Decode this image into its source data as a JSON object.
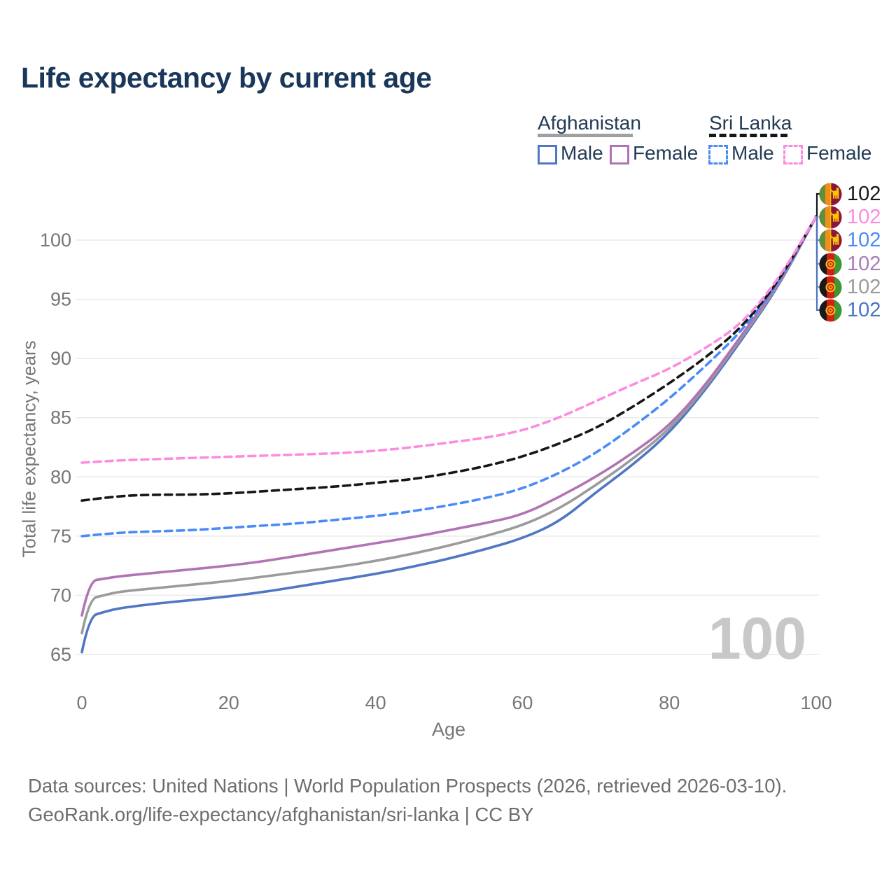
{
  "title": "Life expectancy by current age",
  "watermark": "100",
  "colors": {
    "title_text": "#19375a",
    "legend_text": "#243b55",
    "axis_text": "#767676",
    "gridline": "#eaeaea",
    "watermark": "#c8c8c8",
    "footer_text": "#6d6d6d",
    "afghanistan_male": "#4f77c3",
    "afghanistan_all": "#9b9b9b",
    "afghanistan_female": "#b273b5",
    "sri_lanka_male": "#4a8cf7",
    "sri_lanka_all": "#171717",
    "sri_lanka_female": "#fb8ce1"
  },
  "legend": {
    "groups": [
      {
        "name": "Afghanistan",
        "line_style": "solid",
        "items": [
          {
            "label": "Male",
            "color": "#4f77c3"
          },
          {
            "label": "Female",
            "color": "#b273b5"
          }
        ]
      },
      {
        "name": "Sri Lanka",
        "line_style": "dashed",
        "items": [
          {
            "label": "Male",
            "color": "#4a8cf7"
          },
          {
            "label": "Female",
            "color": "#fb8ce1"
          }
        ]
      }
    ]
  },
  "chart_data": {
    "type": "line",
    "xlabel": "Age",
    "ylabel": "Total life expectancy, years",
    "xlim": [
      0,
      100
    ],
    "ylim": [
      65,
      102.5
    ],
    "xticks": [
      0,
      20,
      40,
      60,
      80,
      100
    ],
    "yticks": [
      65,
      70,
      75,
      80,
      85,
      90,
      95,
      100
    ],
    "grid": "horizontal",
    "legend_position": "top-right",
    "series": [
      {
        "name": "Afghanistan Male",
        "country": "Afghanistan",
        "group": "Male",
        "color": "#4f77c3",
        "dash": false,
        "end_value": 102,
        "points": [
          [
            0,
            65.2
          ],
          [
            1,
            68.2
          ],
          [
            3,
            68.6
          ],
          [
            5,
            68.9
          ],
          [
            10,
            69.3
          ],
          [
            15,
            69.6
          ],
          [
            20,
            69.9
          ],
          [
            25,
            70.3
          ],
          [
            30,
            70.8
          ],
          [
            35,
            71.3
          ],
          [
            40,
            71.8
          ],
          [
            45,
            72.4
          ],
          [
            50,
            73.1
          ],
          [
            55,
            73.9
          ],
          [
            60,
            74.8
          ],
          [
            65,
            76.2
          ],
          [
            70,
            78.7
          ],
          [
            75,
            81.0
          ],
          [
            80,
            83.7
          ],
          [
            85,
            87.4
          ],
          [
            90,
            91.7
          ],
          [
            95,
            96.2
          ],
          [
            100,
            102
          ]
        ]
      },
      {
        "name": "Afghanistan All",
        "country": "Afghanistan",
        "group": "All",
        "color": "#9b9b9b",
        "dash": false,
        "end_value": 102,
        "points": [
          [
            0,
            66.8
          ],
          [
            1,
            69.7
          ],
          [
            3,
            70.0
          ],
          [
            5,
            70.3
          ],
          [
            10,
            70.6
          ],
          [
            15,
            70.9
          ],
          [
            20,
            71.2
          ],
          [
            25,
            71.6
          ],
          [
            30,
            72.0
          ],
          [
            35,
            72.4
          ],
          [
            40,
            72.9
          ],
          [
            45,
            73.5
          ],
          [
            50,
            74.2
          ],
          [
            55,
            75.0
          ],
          [
            60,
            75.9
          ],
          [
            65,
            77.3
          ],
          [
            70,
            79.3
          ],
          [
            75,
            81.5
          ],
          [
            80,
            84.0
          ],
          [
            85,
            87.6
          ],
          [
            90,
            91.9
          ],
          [
            95,
            96.3
          ],
          [
            100,
            102
          ]
        ]
      },
      {
        "name": "Afghanistan Female",
        "country": "Afghanistan",
        "group": "Female",
        "color": "#b273b5",
        "dash": false,
        "end_value": 102,
        "points": [
          [
            0,
            68.3
          ],
          [
            1,
            71.2
          ],
          [
            3,
            71.4
          ],
          [
            5,
            71.6
          ],
          [
            10,
            71.9
          ],
          [
            15,
            72.2
          ],
          [
            20,
            72.5
          ],
          [
            25,
            72.9
          ],
          [
            30,
            73.4
          ],
          [
            35,
            73.9
          ],
          [
            40,
            74.4
          ],
          [
            45,
            74.9
          ],
          [
            50,
            75.5
          ],
          [
            55,
            76.1
          ],
          [
            60,
            76.8
          ],
          [
            65,
            78.3
          ],
          [
            70,
            80.0
          ],
          [
            75,
            82.0
          ],
          [
            80,
            84.3
          ],
          [
            85,
            87.8
          ],
          [
            90,
            92.1
          ],
          [
            95,
            96.4
          ],
          [
            100,
            102
          ]
        ]
      },
      {
        "name": "Sri Lanka Male",
        "country": "Sri Lanka",
        "group": "Male",
        "color": "#4a8cf7",
        "dash": true,
        "end_value": 102,
        "points": [
          [
            0,
            75.0
          ],
          [
            5,
            75.3
          ],
          [
            10,
            75.4
          ],
          [
            15,
            75.5
          ],
          [
            20,
            75.7
          ],
          [
            25,
            75.9
          ],
          [
            30,
            76.1
          ],
          [
            35,
            76.4
          ],
          [
            40,
            76.7
          ],
          [
            45,
            77.1
          ],
          [
            50,
            77.6
          ],
          [
            55,
            78.2
          ],
          [
            60,
            79.0
          ],
          [
            65,
            80.3
          ],
          [
            70,
            82.0
          ],
          [
            75,
            84.2
          ],
          [
            80,
            86.6
          ],
          [
            85,
            89.4
          ],
          [
            90,
            92.4
          ],
          [
            95,
            96.5
          ],
          [
            100,
            102
          ]
        ]
      },
      {
        "name": "Sri Lanka All",
        "country": "Sri Lanka",
        "group": "All",
        "color": "#171717",
        "dash": true,
        "end_value": 102,
        "points": [
          [
            0,
            78.0
          ],
          [
            5,
            78.4
          ],
          [
            10,
            78.5
          ],
          [
            15,
            78.5
          ],
          [
            20,
            78.6
          ],
          [
            25,
            78.8
          ],
          [
            30,
            79.0
          ],
          [
            35,
            79.2
          ],
          [
            40,
            79.5
          ],
          [
            45,
            79.8
          ],
          [
            50,
            80.3
          ],
          [
            55,
            80.9
          ],
          [
            60,
            81.7
          ],
          [
            65,
            82.8
          ],
          [
            70,
            84.1
          ],
          [
            75,
            85.9
          ],
          [
            80,
            87.9
          ],
          [
            85,
            90.1
          ],
          [
            90,
            92.7
          ],
          [
            95,
            96.6
          ],
          [
            100,
            102
          ]
        ]
      },
      {
        "name": "Sri Lanka Female",
        "country": "Sri Lanka",
        "group": "Female",
        "color": "#fb8ce1",
        "dash": true,
        "end_value": 102,
        "points": [
          [
            0,
            81.2
          ],
          [
            5,
            81.4
          ],
          [
            10,
            81.5
          ],
          [
            15,
            81.6
          ],
          [
            20,
            81.7
          ],
          [
            25,
            81.8
          ],
          [
            30,
            81.9
          ],
          [
            35,
            82.0
          ],
          [
            40,
            82.2
          ],
          [
            45,
            82.5
          ],
          [
            50,
            82.9
          ],
          [
            55,
            83.3
          ],
          [
            60,
            83.9
          ],
          [
            65,
            85.0
          ],
          [
            70,
            86.4
          ],
          [
            75,
            87.8
          ],
          [
            80,
            89.1
          ],
          [
            85,
            90.9
          ],
          [
            90,
            93.0
          ],
          [
            95,
            96.8
          ],
          [
            100,
            102
          ]
        ]
      }
    ]
  },
  "end_labels": [
    {
      "flag": "sri-lanka",
      "value": "102",
      "color": "#171717"
    },
    {
      "flag": "sri-lanka",
      "value": "102",
      "color": "#fb8ce1"
    },
    {
      "flag": "sri-lanka",
      "value": "102",
      "color": "#4a8cf7"
    },
    {
      "flag": "afghanistan",
      "value": "102",
      "color": "#a97cb8"
    },
    {
      "flag": "afghanistan",
      "value": "102",
      "color": "#9b9b9b"
    },
    {
      "flag": "afghanistan",
      "value": "102",
      "color": "#4a74c4"
    }
  ],
  "footer": {
    "line1": "Data sources: United Nations | World Population Prospects (2026, retrieved 2026-03-10).",
    "line2": "GeoRank.org/life-expectancy/afghanistan/sri-lanka | CC BY"
  }
}
